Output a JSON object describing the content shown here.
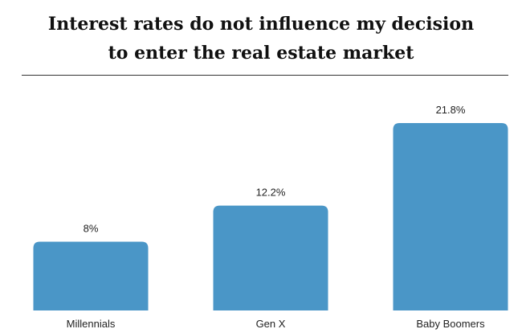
{
  "chart_data": {
    "type": "bar",
    "title": "Interest rates do not influence my decision to enter the real estate market",
    "title_lines": [
      "Interest rates do not influence my decision",
      "to enter the real estate market"
    ],
    "categories": [
      "Millennials",
      "Gen X",
      "Baby Boomers"
    ],
    "values": [
      8,
      12.2,
      21.8
    ],
    "value_labels": [
      "8%",
      "12.2%",
      "21.8%"
    ],
    "xlabel": "",
    "ylabel": "",
    "ylim": [
      0,
      21.8
    ],
    "grid": false,
    "legend": "none",
    "bar_color": "#4a96c7"
  }
}
